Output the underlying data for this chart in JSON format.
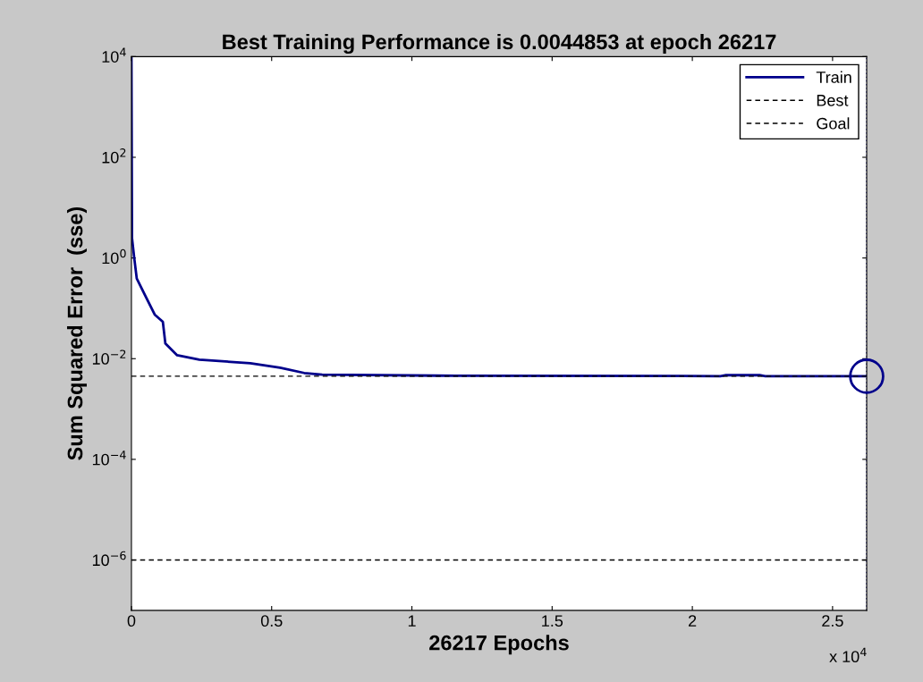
{
  "chart_data": {
    "type": "line",
    "title": "Best Training Performance is 0.0044853 at epoch 26217",
    "xlabel": "26217 Epochs",
    "ylabel": "Sum Squared Error  (sse)",
    "log": "y",
    "xlim": [
      0,
      2.6217
    ],
    "ylim": [
      1e-07,
      10000
    ],
    "xticks": [
      0,
      0.5,
      1,
      1.5,
      2,
      2.5
    ],
    "yticks": [
      {
        "value": 1e-06,
        "label": "10$^{−6}$"
      },
      {
        "value": 0.0001,
        "label": "10$^{−4}$"
      },
      {
        "value": 0.01,
        "label": "10$^{−2}$"
      },
      {
        "value": 1,
        "label": "10$^{0}$"
      },
      {
        "value": 100,
        "label": "10$^{2}$"
      },
      {
        "value": 10000,
        "label": "10$^{4}$"
      }
    ],
    "annotations": [
      "x 10$^{4}$"
    ],
    "grid": false,
    "legend": "top right",
    "series": [
      {
        "name": "Train",
        "color": "#00008b",
        "line_style": "solid",
        "marker": "none",
        "x": [
          0,
          0.002,
          0.01,
          0.019,
          0.051,
          0.083,
          0.112,
          0.121,
          0.163,
          0.242,
          0.424,
          0.53,
          0.616,
          0.68,
          1.084,
          2.1,
          2.12,
          2.24,
          2.26,
          2.6217
        ],
        "values": [
          10000,
          2.5,
          1,
          0.39,
          0.17,
          0.075,
          0.054,
          0.02,
          0.0117,
          0.0096,
          0.0081,
          0.0066,
          0.0052,
          0.0048,
          0.0046,
          0.0045,
          0.0047,
          0.0047,
          0.0045,
          0.0044853
        ]
      },
      {
        "name": "Best",
        "color": "#000000",
        "line_style": "dashed",
        "marker": "none",
        "x": [
          0,
          2.6217
        ],
        "values": [
          0.0044853,
          0.0044853
        ]
      },
      {
        "name": "Goal",
        "color": "#000000",
        "line_style": "dashed",
        "marker": "none",
        "x": [
          0,
          2.6217
        ],
        "values": [
          1e-06,
          1e-06
        ]
      },
      {
        "type": "scatter",
        "color": "#00008b",
        "marker": "circle",
        "x": [
          2.6217
        ],
        "values": [
          0.0044853
        ]
      }
    ],
    "ref_lines": [
      {
        "axis": "x",
        "value": 2.6217,
        "color": "#00008b",
        "line_style": "dotted"
      }
    ]
  }
}
